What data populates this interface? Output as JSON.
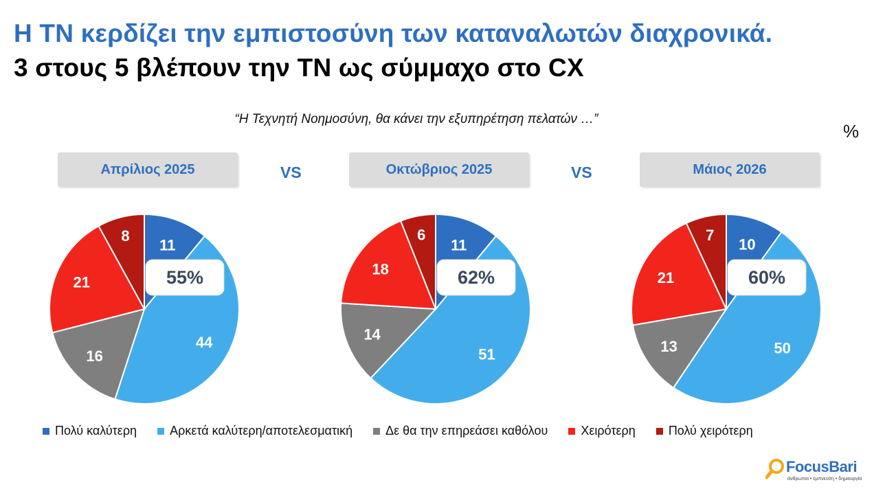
{
  "header": {
    "title_line1": "Η ΤΝ κερδίζει την εμπιστοσύνη των καταναλωτών διαχρονικά.",
    "title_line2": "3 στους 5 βλέπουν την ΤΝ ως σύμμαχο στο CX",
    "question": "“Η Τεχνητή Νοημοσύνη, θα κάνει την εξυπηρέτηση πελατών …”",
    "unit": "%"
  },
  "vs_label": "VS",
  "colors": {
    "title_blue": "#2e6fc0",
    "panel_grey": "#dcdcdc"
  },
  "chart_data": {
    "type": "pie",
    "unit": "%",
    "categories": [
      {
        "name": "Πολύ καλύτερη",
        "color": "#2f6fc1"
      },
      {
        "name": "Αρκετά καλύτερη/αποτελεσματική",
        "color": "#43adeb"
      },
      {
        "name": "Δε θα την επηρεάσει καθόλου",
        "color": "#7f7f7f"
      },
      {
        "name": "Χειρότερη",
        "color": "#f2251d"
      },
      {
        "name": "Πολύ χειρότερη",
        "color": "#b21a12"
      }
    ],
    "charts": [
      {
        "period": "Απρίλιος 2025",
        "values": [
          11,
          44,
          16,
          21,
          8
        ],
        "positive_total": "55%"
      },
      {
        "period": "Οκτώβριος 2025",
        "values": [
          11,
          51,
          14,
          18,
          6
        ],
        "positive_total": "62%"
      },
      {
        "period": "Μάιος 2026",
        "values": [
          10,
          50,
          13,
          21,
          7
        ],
        "positive_total": "60%"
      }
    ],
    "legend_position": "bottom"
  },
  "logo": {
    "name": "FocusBari",
    "tagline": "άνθρωποι • εμπνευση • δημιουργία"
  }
}
